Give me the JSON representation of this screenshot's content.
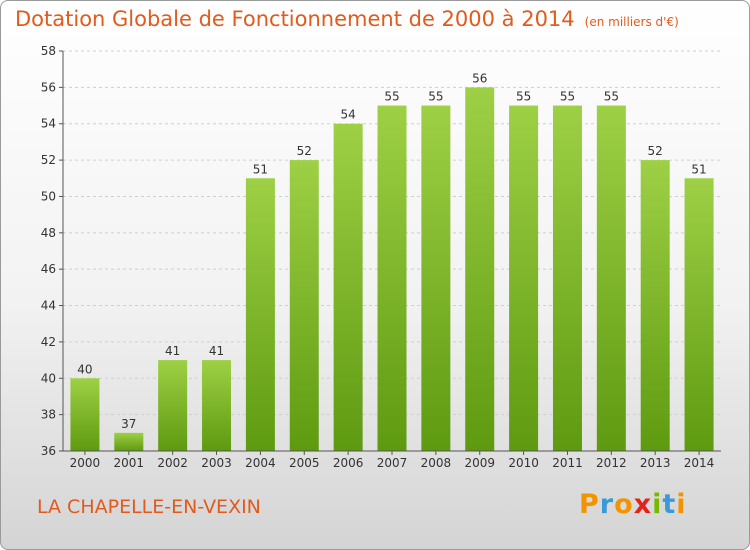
{
  "title": "Dotation Globale de Fonctionnement de 2000 à 2014",
  "unit": "(en milliers d'€)",
  "commune": "LA CHAPELLE-EN-VEXIN",
  "logo": {
    "text": "Proxiti",
    "letters": [
      {
        "ch": "P",
        "color": "#f29400"
      },
      {
        "ch": "r",
        "color": "#3a9ad9"
      },
      {
        "ch": "o",
        "color": "#f29400"
      },
      {
        "ch": "x",
        "color": "#e2231a"
      },
      {
        "ch": "i",
        "color": "#7ab800"
      },
      {
        "ch": "t",
        "color": "#3a9ad9"
      },
      {
        "ch": "i",
        "color": "#f29400"
      }
    ]
  },
  "colors": {
    "accent": "#e25a1c",
    "bar_top": "#9ed045",
    "bar_bottom": "#5e9a10",
    "grid": "#cfcfcf"
  },
  "chart_data": {
    "type": "bar",
    "categories": [
      "2000",
      "2001",
      "2002",
      "2003",
      "2004",
      "2005",
      "2006",
      "2007",
      "2008",
      "2009",
      "2010",
      "2011",
      "2012",
      "2013",
      "2014"
    ],
    "values": [
      40,
      37,
      41,
      41,
      51,
      52,
      54,
      55,
      55,
      56,
      55,
      55,
      55,
      52,
      51
    ],
    "ylim": [
      36,
      58
    ],
    "yticks": [
      36,
      38,
      40,
      42,
      44,
      46,
      48,
      50,
      52,
      54,
      56,
      58
    ],
    "grid": true,
    "title": "Dotation Globale de Fonctionnement de 2000 à 2014",
    "xlabel": "",
    "ylabel": ""
  }
}
